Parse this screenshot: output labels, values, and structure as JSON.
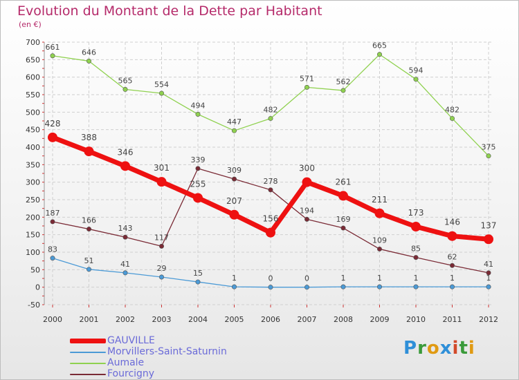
{
  "title": "Evolution du Montant de la Dette par Habitant",
  "unit": "(en €)",
  "logo": "Proxiti",
  "colors": {
    "grid": "#cfcfcf",
    "axis_text": "#333333",
    "label_text": "#444444",
    "title": "#b52a6a",
    "legend_text": "#6a6ad8",
    "logo": [
      "#2f8fd8",
      "#3a9a3a",
      "#e09a12",
      "#2f8fd8",
      "#d24a2a",
      "#3a9a3a",
      "#e09a12"
    ]
  },
  "chart_data": {
    "type": "line",
    "x": [
      2000,
      2001,
      2002,
      2003,
      2004,
      2005,
      2006,
      2007,
      2008,
      2009,
      2010,
      2011,
      2012
    ],
    "ylim": [
      -50,
      700
    ],
    "yticks": [
      -50,
      0,
      50,
      100,
      150,
      200,
      250,
      300,
      350,
      400,
      450,
      500,
      550,
      600,
      650,
      700
    ],
    "grid": true,
    "legend_position": "bottom-left",
    "series": [
      {
        "name": "Aumale",
        "color": "#8fd14f",
        "values": [
          661,
          646,
          565,
          554,
          494,
          447,
          482,
          571,
          562,
          665,
          594,
          482,
          375
        ]
      },
      {
        "name": "Fourcigny",
        "color": "#7a2a35",
        "values": [
          187,
          166,
          143,
          117,
          339,
          309,
          278,
          194,
          169,
          109,
          85,
          62,
          41
        ]
      },
      {
        "name": "Morvillers-Saint-Saturnin",
        "color": "#4b9ad6",
        "values": [
          83,
          51,
          41,
          29,
          15,
          1,
          0,
          0,
          1,
          1,
          1,
          1,
          1
        ]
      },
      {
        "name": "GAUVILLE",
        "color": "#ee1111",
        "values": [
          428,
          388,
          346,
          301,
          255,
          207,
          156,
          300,
          261,
          211,
          173,
          146,
          137
        ]
      }
    ]
  },
  "legend": [
    {
      "label": "GAUVILLE",
      "color": "#ee1111"
    },
    {
      "label": "Morvillers-Saint-Saturnin",
      "color": "#4b9ad6"
    },
    {
      "label": "Aumale",
      "color": "#8fd14f"
    },
    {
      "label": "Fourcigny",
      "color": "#7a2a35"
    }
  ]
}
